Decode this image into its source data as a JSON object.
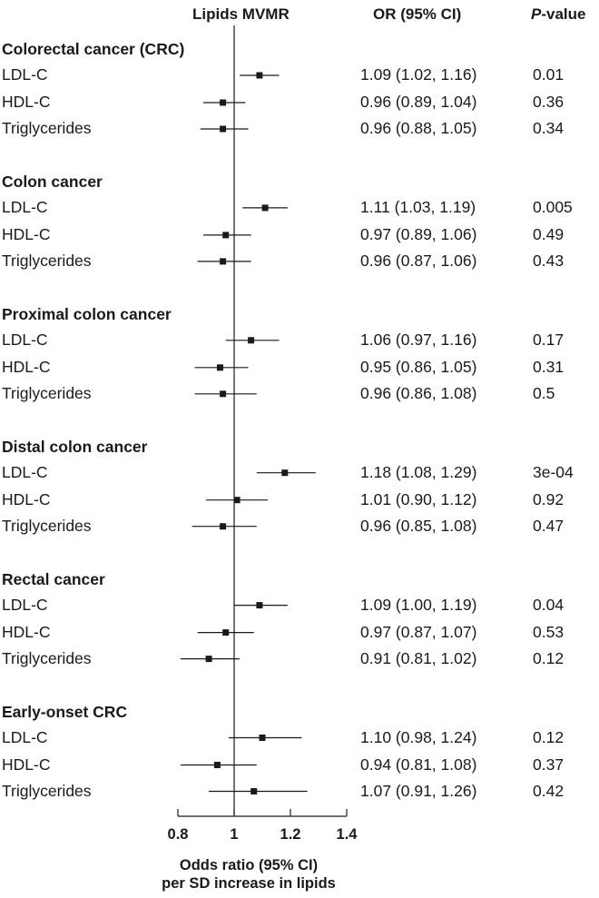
{
  "header": {
    "plot_title": "Lipids MVMR",
    "or_title": "OR (95% CI)",
    "p_title_italic": "P",
    "p_title_rest": "-value"
  },
  "chart_data": {
    "type": "forest",
    "title": "Lipids MVMR",
    "xlabel_line1": "Odds ratio (95% CI)",
    "xlabel_line2": "per SD increase in lipids",
    "xlim": [
      0.78,
      1.42
    ],
    "xticks": [
      "0.8",
      "1",
      "1.2",
      "1.4"
    ],
    "xtick_values": [
      0.8,
      1.0,
      1.2,
      1.4
    ],
    "reference_line": 1,
    "groups": [
      {
        "title": "Colorectal cancer (CRC)",
        "rows": [
          {
            "label": "LDL-C",
            "or": 1.09,
            "lo": 1.02,
            "hi": 1.16,
            "or_text": "1.09 (1.02, 1.16)",
            "p": "0.01"
          },
          {
            "label": "HDL-C",
            "or": 0.96,
            "lo": 0.89,
            "hi": 1.04,
            "or_text": "0.96 (0.89, 1.04)",
            "p": "0.36"
          },
          {
            "label": "Triglycerides",
            "or": 0.96,
            "lo": 0.88,
            "hi": 1.05,
            "or_text": "0.96 (0.88, 1.05)",
            "p": "0.34"
          }
        ]
      },
      {
        "title": "Colon cancer",
        "rows": [
          {
            "label": "LDL-C",
            "or": 1.11,
            "lo": 1.03,
            "hi": 1.19,
            "or_text": "1.11 (1.03, 1.19)",
            "p": "0.005"
          },
          {
            "label": "HDL-C",
            "or": 0.97,
            "lo": 0.89,
            "hi": 1.06,
            "or_text": "0.97 (0.89, 1.06)",
            "p": "0.49"
          },
          {
            "label": "Triglycerides",
            "or": 0.96,
            "lo": 0.87,
            "hi": 1.06,
            "or_text": "0.96 (0.87, 1.06)",
            "p": "0.43"
          }
        ]
      },
      {
        "title": "Proximal colon cancer",
        "rows": [
          {
            "label": "LDL-C",
            "or": 1.06,
            "lo": 0.97,
            "hi": 1.16,
            "or_text": "1.06 (0.97, 1.16)",
            "p": "0.17"
          },
          {
            "label": "HDL-C",
            "or": 0.95,
            "lo": 0.86,
            "hi": 1.05,
            "or_text": "0.95 (0.86, 1.05)",
            "p": "0.31"
          },
          {
            "label": "Triglycerides",
            "or": 0.96,
            "lo": 0.86,
            "hi": 1.08,
            "or_text": "0.96 (0.86, 1.08)",
            "p": "0.5"
          }
        ]
      },
      {
        "title": "Distal colon cancer",
        "rows": [
          {
            "label": "LDL-C",
            "or": 1.18,
            "lo": 1.08,
            "hi": 1.29,
            "or_text": "1.18 (1.08, 1.29)",
            "p": "3e-04"
          },
          {
            "label": "HDL-C",
            "or": 1.01,
            "lo": 0.9,
            "hi": 1.12,
            "or_text": "1.01 (0.90, 1.12)",
            "p": "0.92"
          },
          {
            "label": "Triglycerides",
            "or": 0.96,
            "lo": 0.85,
            "hi": 1.08,
            "or_text": "0.96 (0.85, 1.08)",
            "p": "0.47"
          }
        ]
      },
      {
        "title": "Rectal cancer",
        "rows": [
          {
            "label": "LDL-C",
            "or": 1.09,
            "lo": 1.0,
            "hi": 1.19,
            "or_text": "1.09 (1.00, 1.19)",
            "p": "0.04"
          },
          {
            "label": "HDL-C",
            "or": 0.97,
            "lo": 0.87,
            "hi": 1.07,
            "or_text": "0.97 (0.87, 1.07)",
            "p": "0.53"
          },
          {
            "label": "Triglycerides",
            "or": 0.91,
            "lo": 0.81,
            "hi": 1.02,
            "or_text": "0.91 (0.81, 1.02)",
            "p": "0.12"
          }
        ]
      },
      {
        "title": "Early-onset CRC",
        "rows": [
          {
            "label": "LDL-C",
            "or": 1.1,
            "lo": 0.98,
            "hi": 1.24,
            "or_text": "1.10 (0.98, 1.24)",
            "p": "0.12"
          },
          {
            "label": "HDL-C",
            "or": 0.94,
            "lo": 0.81,
            "hi": 1.08,
            "or_text": "0.94 (0.81, 1.08)",
            "p": "0.37"
          },
          {
            "label": "Triglycerides",
            "or": 1.07,
            "lo": 0.91,
            "hi": 1.26,
            "or_text": "1.07 (0.91, 1.26)",
            "p": "0.42"
          }
        ]
      }
    ]
  }
}
